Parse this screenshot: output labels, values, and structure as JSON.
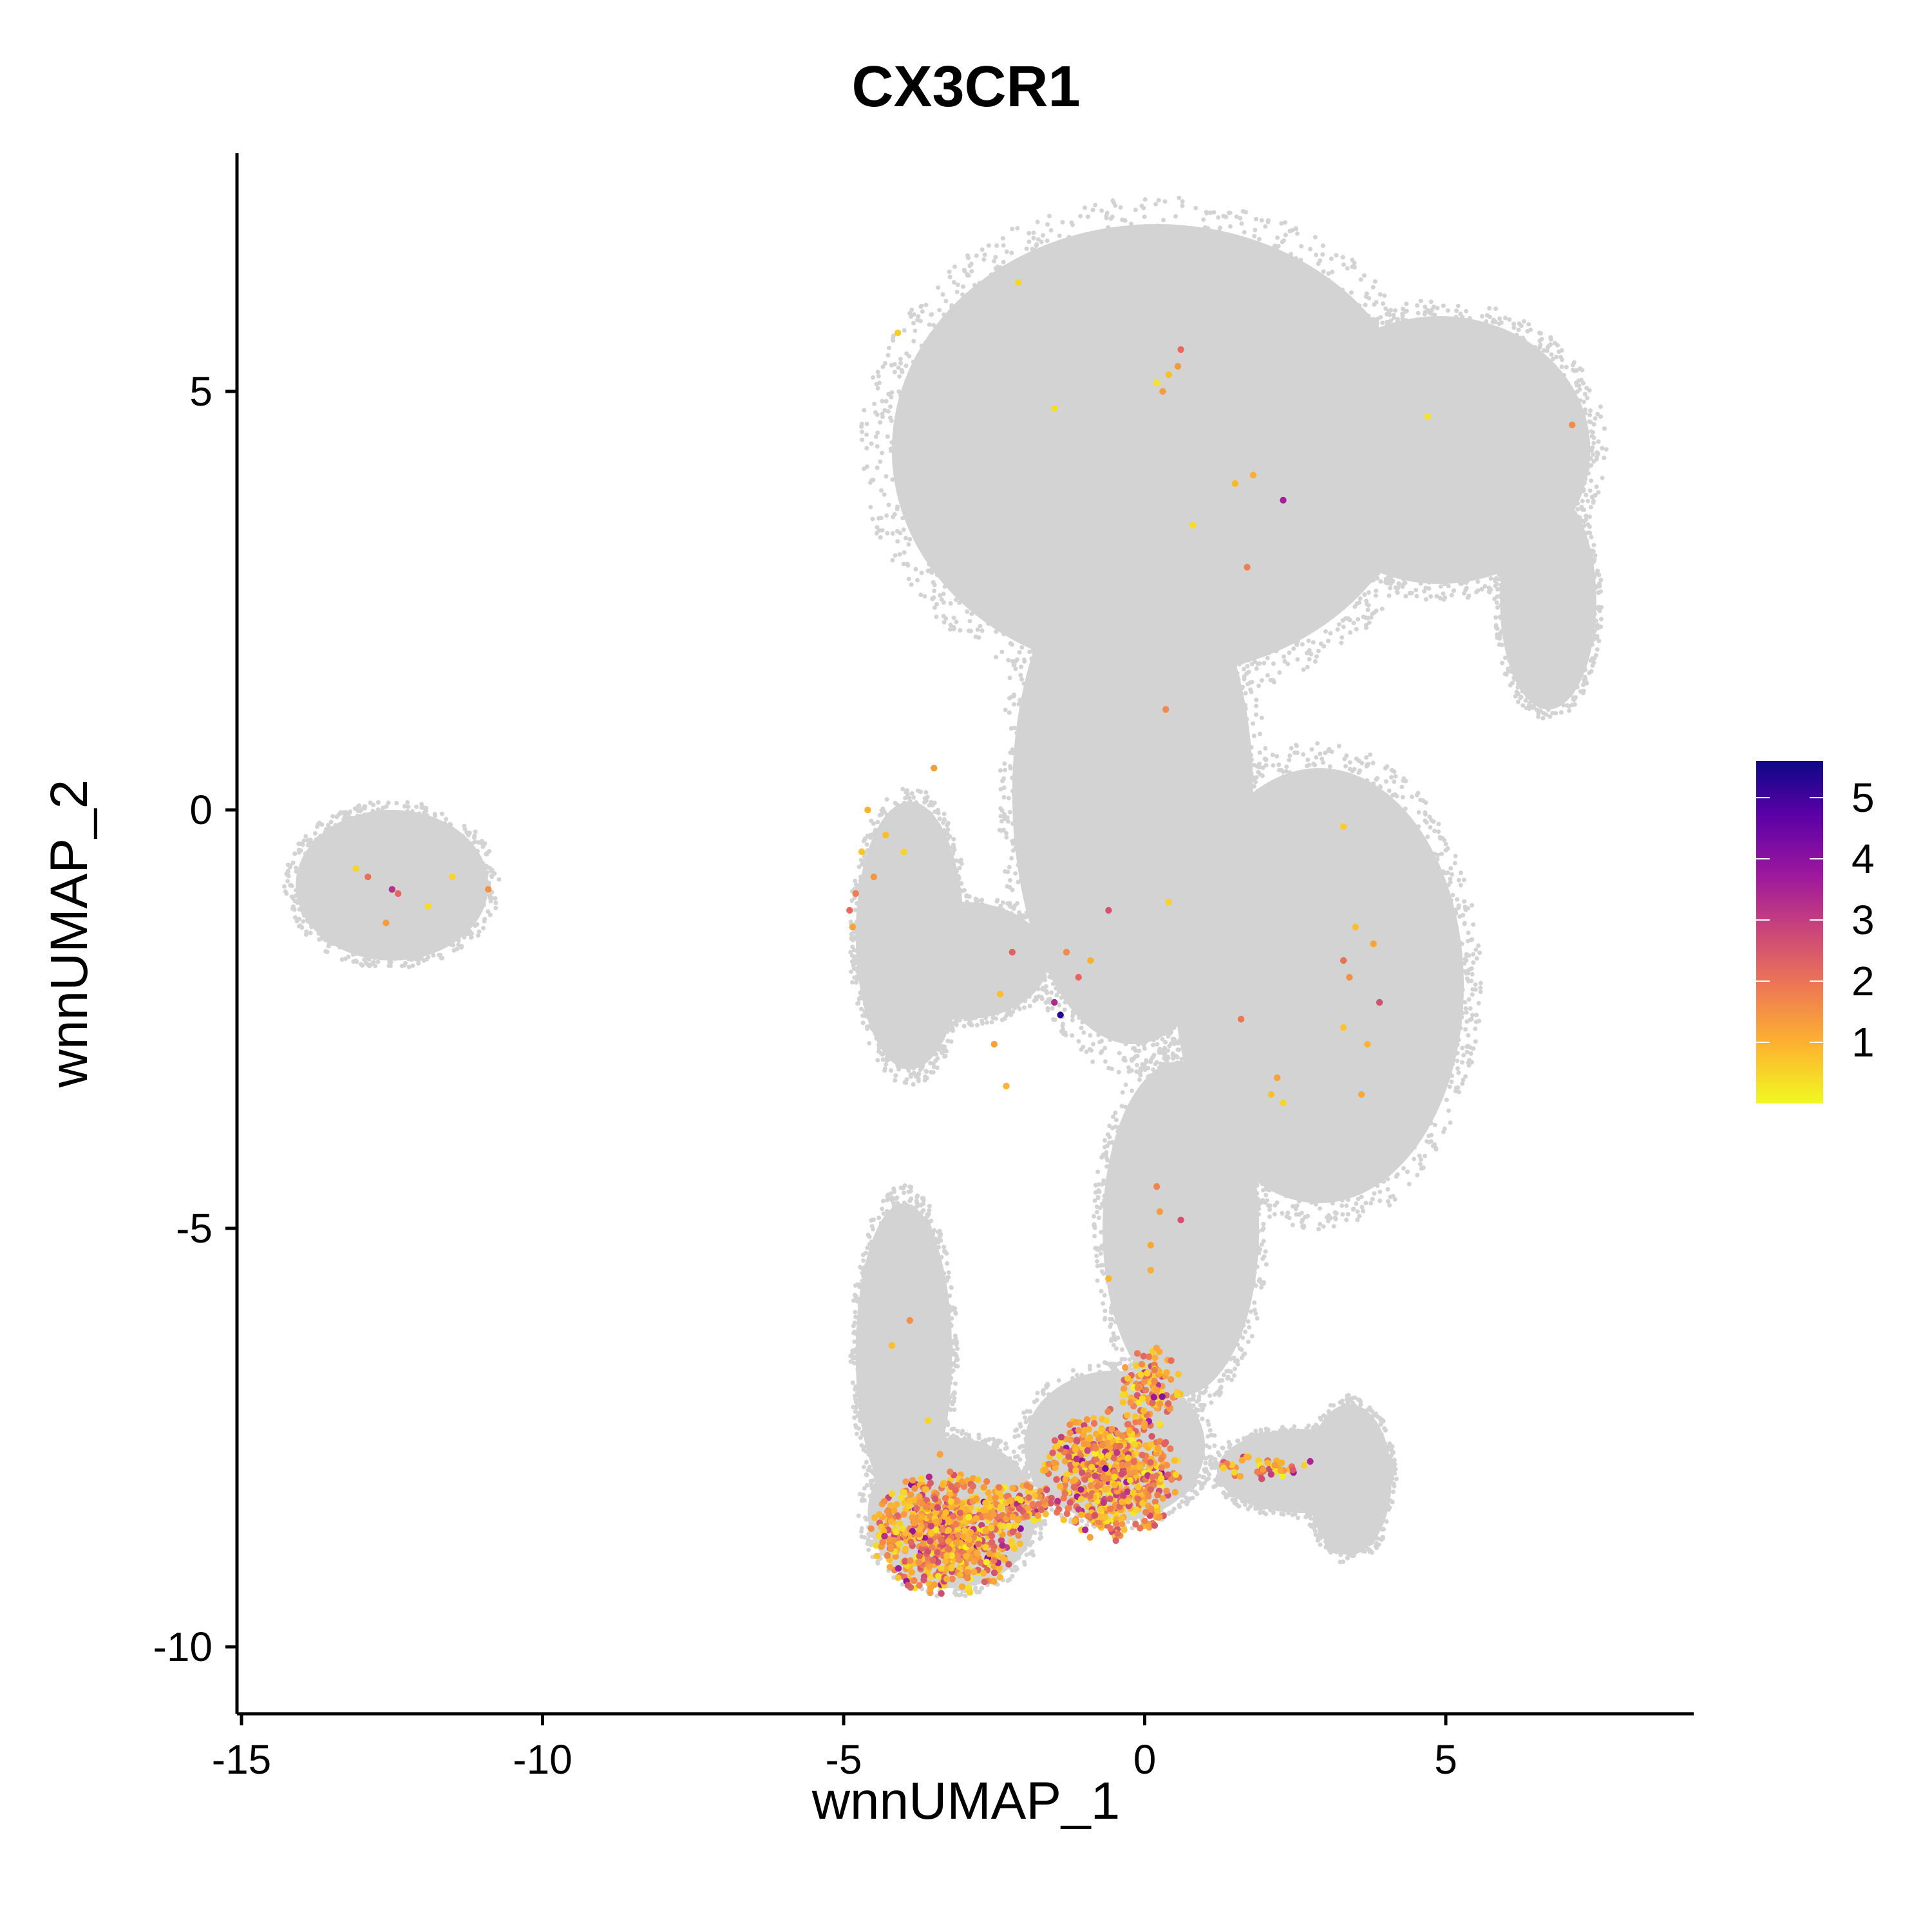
{
  "chart_data": {
    "type": "scatter",
    "title": "CX3CR1",
    "xlabel": "wnnUMAP_1",
    "ylabel": "wnnUMAP_2",
    "xlim": [
      -15.1,
      9.0
    ],
    "ylim": [
      -10.8,
      7.9
    ],
    "x_ticks": [
      -15,
      -10,
      -5,
      0,
      5
    ],
    "y_ticks": [
      5,
      0,
      -5,
      -10
    ],
    "grid": false,
    "background_color": "#d3d3d3",
    "palette": [
      "#f0f921",
      "#fdb42f",
      "#ed7953",
      "#cc4778",
      "#9c179e",
      "#5c01a6",
      "#0d0887"
    ],
    "legend": {
      "position": "right",
      "range": [
        0,
        5.6
      ],
      "ticks": [
        1,
        2,
        3,
        4,
        5
      ]
    },
    "background_clusters": [
      {
        "name": "left-island",
        "cx": -12.5,
        "cy": -0.9,
        "rx": 1.6,
        "ry": 0.9
      },
      {
        "name": "top-blob",
        "cx": 0.2,
        "cy": 4.3,
        "rx": 4.4,
        "ry": 2.7
      },
      {
        "name": "upper-right-arm",
        "cx": 4.9,
        "cy": 4.3,
        "rx": 2.5,
        "ry": 1.6
      },
      {
        "name": "right-arm-tail",
        "cx": 6.7,
        "cy": 2.5,
        "rx": 0.8,
        "ry": 1.3
      },
      {
        "name": "center-column",
        "cx": -0.2,
        "cy": 0.2,
        "rx": 2.0,
        "ry": 3.0
      },
      {
        "name": "right-lobe",
        "cx": 2.9,
        "cy": -2.1,
        "rx": 2.4,
        "ry": 2.6
      },
      {
        "name": "left-strand",
        "cx": -3.9,
        "cy": -1.5,
        "rx": 0.9,
        "ry": 1.6
      },
      {
        "name": "left-mid-blob",
        "cx": -3.0,
        "cy": -1.8,
        "rx": 1.4,
        "ry": 0.7
      },
      {
        "name": "lower-column",
        "cx": 0.6,
        "cy": -5.0,
        "rx": 1.3,
        "ry": 2.0
      },
      {
        "name": "lower-left-arm",
        "cx": -4.0,
        "cy": -6.5,
        "rx": 0.8,
        "ry": 1.8
      },
      {
        "name": "bottom-left",
        "cx": -3.2,
        "cy": -8.4,
        "rx": 1.4,
        "ry": 0.9
      },
      {
        "name": "bottom-center",
        "cx": -0.5,
        "cy": -7.6,
        "rx": 1.5,
        "ry": 0.9
      },
      {
        "name": "right-bottom-arm",
        "cx": 2.6,
        "cy": -7.9,
        "rx": 1.4,
        "ry": 0.5
      },
      {
        "name": "far-right-blob",
        "cx": 3.4,
        "cy": -8.0,
        "rx": 0.7,
        "ry": 0.9
      }
    ],
    "expression_points": [
      {
        "x": -13.1,
        "y": -0.7,
        "v": 0.5
      },
      {
        "x": -12.9,
        "y": -0.8,
        "v": 2.0
      },
      {
        "x": -12.5,
        "y": -0.95,
        "v": 3.2
      },
      {
        "x": -12.4,
        "y": -1.0,
        "v": 2.2
      },
      {
        "x": -12.6,
        "y": -1.35,
        "v": 1.3
      },
      {
        "x": -11.9,
        "y": -1.15,
        "v": 0.4
      },
      {
        "x": -11.5,
        "y": -0.8,
        "v": 0.5
      },
      {
        "x": -10.9,
        "y": -0.95,
        "v": 1.5
      },
      {
        "x": -4.6,
        "y": 0.0,
        "v": 1.0
      },
      {
        "x": -4.3,
        "y": -0.3,
        "v": 0.8
      },
      {
        "x": -4.0,
        "y": -0.5,
        "v": 0.5
      },
      {
        "x": -4.7,
        "y": -0.5,
        "v": 0.7
      },
      {
        "x": -4.8,
        "y": -1.0,
        "v": 1.8
      },
      {
        "x": -4.9,
        "y": -1.2,
        "v": 2.1
      },
      {
        "x": -4.85,
        "y": -1.4,
        "v": 1.2
      },
      {
        "x": -4.5,
        "y": -0.8,
        "v": 1.4
      },
      {
        "x": -3.5,
        "y": 0.5,
        "v": 1.3
      },
      {
        "x": -2.2,
        "y": -1.7,
        "v": 2.3
      },
      {
        "x": -2.4,
        "y": -2.2,
        "v": 0.8
      },
      {
        "x": -2.5,
        "y": -2.8,
        "v": 1.2
      },
      {
        "x": -2.3,
        "y": -3.3,
        "v": 0.9
      },
      {
        "x": -1.3,
        "y": -1.7,
        "v": 1.6
      },
      {
        "x": -1.1,
        "y": -2.0,
        "v": 2.2
      },
      {
        "x": -1.5,
        "y": -2.3,
        "v": 3.4
      },
      {
        "x": -1.4,
        "y": -2.45,
        "v": 5.3
      },
      {
        "x": -0.9,
        "y": -1.8,
        "v": 1.0
      },
      {
        "x": -0.6,
        "y": -1.2,
        "v": 2.6
      },
      {
        "x": -4.1,
        "y": 5.7,
        "v": 0.6
      },
      {
        "x": -2.1,
        "y": 6.3,
        "v": 0.5
      },
      {
        "x": -1.5,
        "y": 4.8,
        "v": 0.4
      },
      {
        "x": 0.2,
        "y": 5.1,
        "v": 0.3
      },
      {
        "x": 0.4,
        "y": 5.2,
        "v": 0.8
      },
      {
        "x": 0.55,
        "y": 5.3,
        "v": 1.4
      },
      {
        "x": 0.6,
        "y": 5.5,
        "v": 2.1
      },
      {
        "x": 0.3,
        "y": 5.0,
        "v": 1.3
      },
      {
        "x": 1.5,
        "y": 3.9,
        "v": 0.9
      },
      {
        "x": 1.8,
        "y": 4.0,
        "v": 1.0
      },
      {
        "x": 2.3,
        "y": 3.7,
        "v": 3.6
      },
      {
        "x": 1.7,
        "y": 2.9,
        "v": 1.8
      },
      {
        "x": 0.8,
        "y": 3.4,
        "v": 0.4
      },
      {
        "x": 0.35,
        "y": 1.2,
        "v": 1.6
      },
      {
        "x": 4.7,
        "y": 4.7,
        "v": 0.3
      },
      {
        "x": 7.1,
        "y": 4.6,
        "v": 1.6
      },
      {
        "x": 3.3,
        "y": -0.2,
        "v": 0.6
      },
      {
        "x": 0.4,
        "y": -1.1,
        "v": 0.5
      },
      {
        "x": 3.5,
        "y": -1.4,
        "v": 0.8
      },
      {
        "x": 3.8,
        "y": -1.6,
        "v": 1.2
      },
      {
        "x": 3.3,
        "y": -1.8,
        "v": 2.0
      },
      {
        "x": 3.4,
        "y": -2.0,
        "v": 1.5
      },
      {
        "x": 3.9,
        "y": -2.3,
        "v": 2.6
      },
      {
        "x": 3.3,
        "y": -2.6,
        "v": 0.7
      },
      {
        "x": 3.7,
        "y": -2.8,
        "v": 0.9
      },
      {
        "x": 3.6,
        "y": -3.4,
        "v": 1.1
      },
      {
        "x": 1.6,
        "y": -2.5,
        "v": 1.9
      },
      {
        "x": 2.2,
        "y": -3.2,
        "v": 1.2
      },
      {
        "x": 2.3,
        "y": -3.5,
        "v": 0.5
      },
      {
        "x": 2.1,
        "y": -3.4,
        "v": 0.8
      },
      {
        "x": 0.2,
        "y": -4.5,
        "v": 1.7
      },
      {
        "x": 0.25,
        "y": -4.8,
        "v": 1.3
      },
      {
        "x": 0.6,
        "y": -4.9,
        "v": 2.6
      },
      {
        "x": 0.1,
        "y": -5.2,
        "v": 1.1
      },
      {
        "x": -0.6,
        "y": -5.6,
        "v": 0.9
      },
      {
        "x": 0.1,
        "y": -5.5,
        "v": 1.0
      },
      {
        "x": -4.2,
        "y": -6.4,
        "v": 0.8
      },
      {
        "x": -3.9,
        "y": -6.1,
        "v": 1.5
      },
      {
        "x": -3.6,
        "y": -7.3,
        "v": 0.5
      },
      {
        "x": -3.4,
        "y": -7.7,
        "v": 1.2
      }
    ],
    "dense_clusters": [
      {
        "name": "bottom-left",
        "cx": -3.3,
        "cy": -8.65,
        "rx": 1.25,
        "ry": 0.75,
        "n": 720
      },
      {
        "name": "bottom-center",
        "cx": -0.55,
        "cy": -7.95,
        "rx": 1.15,
        "ry": 0.8,
        "n": 640
      },
      {
        "name": "bridge",
        "cx": -2.1,
        "cy": -8.3,
        "rx": 0.6,
        "ry": 0.3,
        "n": 90
      },
      {
        "name": "center-upper",
        "cx": 0.1,
        "cy": -6.9,
        "rx": 0.5,
        "ry": 0.5,
        "n": 120
      },
      {
        "name": "right-arm-expr",
        "cx": 2.0,
        "cy": -7.85,
        "rx": 0.9,
        "ry": 0.15,
        "n": 45
      }
    ]
  }
}
